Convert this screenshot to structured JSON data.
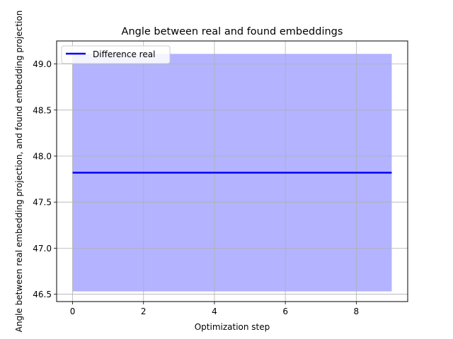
{
  "chart_data": {
    "type": "line",
    "title": "Angle between real and found embeddings",
    "xlabel": "Optimization step",
    "ylabel": "Angle between real embedding projection, and found embedding projection",
    "xlim": [
      -0.45,
      9.45
    ],
    "ylim": [
      46.42,
      49.25
    ],
    "x_ticks": [
      0,
      2,
      4,
      6,
      8
    ],
    "y_ticks": [
      46.5,
      47.0,
      47.5,
      48.0,
      48.5,
      49.0
    ],
    "grid": true,
    "legend_position": "top-left",
    "series": [
      {
        "name": "Difference real",
        "color": "#0000ff",
        "x": [
          0,
          1,
          2,
          3,
          4,
          5,
          6,
          7,
          8,
          9
        ],
        "y": [
          47.82,
          47.82,
          47.82,
          47.82,
          47.82,
          47.82,
          47.82,
          47.82,
          47.82,
          47.82
        ],
        "band_lower": [
          46.53,
          46.53,
          46.53,
          46.53,
          46.53,
          46.53,
          46.53,
          46.53,
          46.53,
          46.53
        ],
        "band_upper": [
          49.11,
          49.11,
          49.11,
          49.11,
          49.11,
          49.11,
          49.11,
          49.11,
          49.11,
          49.11
        ],
        "band_color": "#b3b3ff"
      }
    ]
  }
}
